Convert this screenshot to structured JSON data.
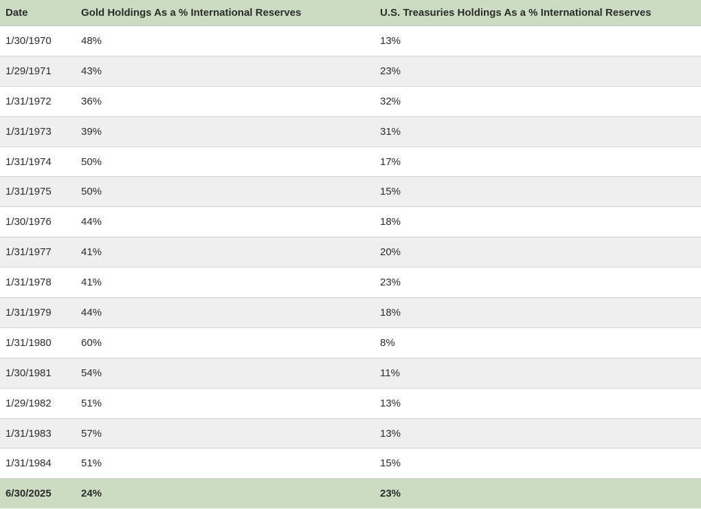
{
  "table": {
    "columns": [
      {
        "label": "Date"
      },
      {
        "label": "Gold Holdings As a % International Reserves"
      },
      {
        "label": "U.S. Treasuries Holdings As a % International Reserves"
      }
    ],
    "rows": [
      {
        "date": "1/30/1970",
        "gold": "48%",
        "treasuries": "13%",
        "highlight": false
      },
      {
        "date": "1/29/1971",
        "gold": "43%",
        "treasuries": "23%",
        "highlight": false
      },
      {
        "date": "1/31/1972",
        "gold": "36%",
        "treasuries": "32%",
        "highlight": false
      },
      {
        "date": "1/31/1973",
        "gold": "39%",
        "treasuries": "31%",
        "highlight": false
      },
      {
        "date": "1/31/1974",
        "gold": "50%",
        "treasuries": "17%",
        "highlight": false
      },
      {
        "date": "1/31/1975",
        "gold": "50%",
        "treasuries": "15%",
        "highlight": false
      },
      {
        "date": "1/30/1976",
        "gold": "44%",
        "treasuries": "18%",
        "highlight": false
      },
      {
        "date": "1/31/1977",
        "gold": "41%",
        "treasuries": "20%",
        "highlight": false
      },
      {
        "date": "1/31/1978",
        "gold": "41%",
        "treasuries": "23%",
        "highlight": false
      },
      {
        "date": "1/31/1979",
        "gold": "44%",
        "treasuries": "18%",
        "highlight": false
      },
      {
        "date": "1/31/1980",
        "gold": "60%",
        "treasuries": "8%",
        "highlight": false
      },
      {
        "date": "1/30/1981",
        "gold": "54%",
        "treasuries": "11%",
        "highlight": false
      },
      {
        "date": "1/29/1982",
        "gold": "51%",
        "treasuries": "13%",
        "highlight": false
      },
      {
        "date": "1/31/1983",
        "gold": "57%",
        "treasuries": "13%",
        "highlight": false
      },
      {
        "date": "1/31/1984",
        "gold": "51%",
        "treasuries": "15%",
        "highlight": false
      },
      {
        "date": "6/30/2025",
        "gold": "24%",
        "treasuries": "23%",
        "highlight": true
      }
    ]
  },
  "colors": {
    "header_bg": "#ccdcc2",
    "highlight_bg": "#cbdcc0",
    "stripe_bg": "#efefef",
    "row_border": "#d4d4d4",
    "header_border": "#c3c3c3",
    "text": "#2b2b2b"
  },
  "chart_data": {
    "type": "table",
    "title": "",
    "columns": [
      "Date",
      "Gold Holdings As a % International Reserves",
      "U.S. Treasuries Holdings As a % International Reserves"
    ],
    "categories": [
      "1/30/1970",
      "1/29/1971",
      "1/31/1972",
      "1/31/1973",
      "1/31/1974",
      "1/31/1975",
      "1/30/1976",
      "1/31/1977",
      "1/31/1978",
      "1/31/1979",
      "1/31/1980",
      "1/30/1981",
      "1/29/1982",
      "1/31/1983",
      "1/31/1984",
      "6/30/2025"
    ],
    "series": [
      {
        "name": "Gold Holdings As a % International Reserves",
        "values": [
          48,
          43,
          36,
          39,
          50,
          50,
          44,
          41,
          41,
          44,
          60,
          54,
          51,
          57,
          51,
          24
        ]
      },
      {
        "name": "U.S. Treasuries Holdings As a % International Reserves",
        "values": [
          13,
          23,
          32,
          31,
          17,
          15,
          18,
          20,
          23,
          18,
          8,
          11,
          13,
          13,
          15,
          23
        ]
      }
    ],
    "highlighted_row": "6/30/2025",
    "unit": "%"
  }
}
